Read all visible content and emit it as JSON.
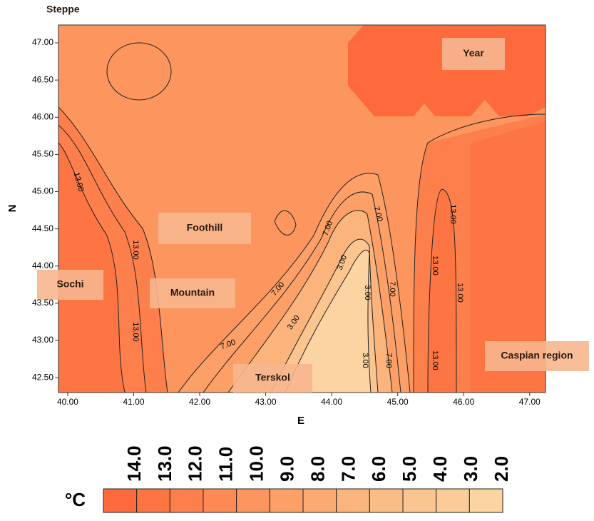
{
  "chart_data": {
    "type": "contour",
    "x_label": "E",
    "y_label": "N",
    "xlim": [
      39.86,
      47.24
    ],
    "ylim": [
      42.3,
      47.24
    ],
    "xticks": [
      {
        "value": 40,
        "label": "40.00"
      },
      {
        "value": 41,
        "label": "41.00"
      },
      {
        "value": 42,
        "label": "42.00"
      },
      {
        "value": 43,
        "label": "43.00"
      },
      {
        "value": 44,
        "label": "44.00"
      },
      {
        "value": 45,
        "label": "45.00"
      },
      {
        "value": 46,
        "label": "46.00"
      },
      {
        "value": 47,
        "label": "47.00"
      }
    ],
    "yticks": [
      {
        "value": 42.5,
        "label": "42.50"
      },
      {
        "value": 43,
        "label": "43.00"
      },
      {
        "value": 43.5,
        "label": "43.50"
      },
      {
        "value": 44,
        "label": "44.00"
      },
      {
        "value": 44.5,
        "label": "44.50"
      },
      {
        "value": 45,
        "label": "45.00"
      },
      {
        "value": 45.5,
        "label": "45.50"
      },
      {
        "value": 46,
        "label": "46.00"
      },
      {
        "value": 46.5,
        "label": "46.50"
      },
      {
        "value": 47,
        "label": "47.00"
      }
    ],
    "contour_labels": [
      "13.00",
      "7.00",
      "3.00"
    ],
    "region_labels": [
      "Steppe",
      "Year",
      "Foothill",
      "Mountain",
      "Sochi",
      "Terskol",
      "Caspian region"
    ],
    "colorbar": {
      "unit": "°C",
      "ticks": [
        {
          "value": 14,
          "label": "14.0"
        },
        {
          "value": 13,
          "label": "13.0"
        },
        {
          "value": 12,
          "label": "12.0"
        },
        {
          "value": 11,
          "label": "11.0"
        },
        {
          "value": 10,
          "label": "10.0"
        },
        {
          "value": 9,
          "label": "9.0"
        },
        {
          "value": 8,
          "label": "8.0"
        },
        {
          "value": 7,
          "label": "7.0"
        },
        {
          "value": 6,
          "label": "6.0"
        },
        {
          "value": 5,
          "label": "5.0"
        },
        {
          "value": 4,
          "label": "4.0"
        },
        {
          "value": 3,
          "label": "3.0"
        },
        {
          "value": 2,
          "label": "2.0"
        }
      ],
      "colors": [
        "#fe6a3c",
        "#fe7544",
        "#fd804c",
        "#fd8a55",
        "#fc955e",
        "#fca068",
        "#fbaa72",
        "#fbb47c",
        "#fbbd86",
        "#fbc590",
        "#fbcc98",
        "#fcd4a2"
      ]
    }
  }
}
